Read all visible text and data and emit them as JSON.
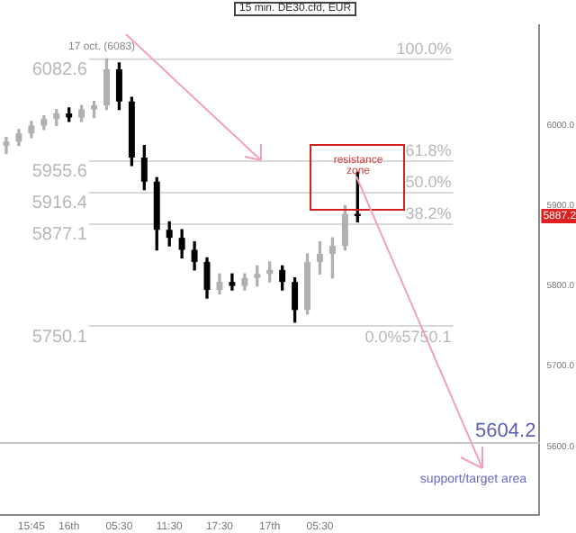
{
  "chart_data": {
    "type": "candlestick",
    "title": "15 min. DE30.cfd, EUR",
    "categories": [
      null,
      null,
      "15:45",
      null,
      null,
      "16th",
      null,
      null,
      null,
      "05:30",
      null,
      null,
      null,
      "11:30",
      null,
      null,
      null,
      "17:30",
      null,
      null,
      null,
      "17th",
      null,
      null,
      null,
      "05:30",
      null,
      null,
      null,
      null,
      null,
      null,
      null,
      null,
      null,
      null,
      null,
      null,
      null,
      null,
      null,
      null,
      null
    ],
    "ohlc": [
      [
        5975,
        5985,
        5965,
        5980
      ],
      [
        5980,
        5995,
        5975,
        5990
      ],
      [
        5990,
        6005,
        5985,
        6000
      ],
      [
        6000,
        6012,
        5995,
        6008
      ],
      [
        6008,
        6020,
        6000,
        6015
      ],
      [
        6015,
        6022,
        6005,
        6010
      ],
      [
        6010,
        6025,
        6005,
        6020
      ],
      [
        6020,
        6030,
        6010,
        6025
      ],
      [
        6025,
        6083,
        6020,
        6070
      ],
      [
        6070,
        6078,
        6020,
        6030
      ],
      [
        6030,
        6035,
        5950,
        5960
      ],
      [
        5960,
        5975,
        5920,
        5930
      ],
      [
        5930,
        5935,
        5845,
        5870
      ],
      [
        5870,
        5880,
        5850,
        5860
      ],
      [
        5860,
        5870,
        5835,
        5845
      ],
      [
        5845,
        5855,
        5820,
        5830
      ],
      [
        5830,
        5835,
        5785,
        5795
      ],
      [
        5795,
        5815,
        5790,
        5805
      ],
      [
        5805,
        5815,
        5795,
        5800
      ],
      [
        5800,
        5815,
        5795,
        5810
      ],
      [
        5810,
        5825,
        5800,
        5815
      ],
      [
        5815,
        5830,
        5805,
        5820
      ],
      [
        5820,
        5825,
        5795,
        5805
      ],
      [
        5805,
        5810,
        5755,
        5770
      ],
      [
        5770,
        5840,
        5765,
        5830
      ],
      [
        5830,
        5855,
        5815,
        5840
      ],
      [
        5840,
        5860,
        5810,
        5850
      ],
      [
        5850,
        5900,
        5845,
        5890
      ],
      [
        5890,
        5942,
        5880,
        5887
      ],
      null,
      null,
      null,
      null,
      null,
      null,
      null,
      null,
      null,
      null,
      null,
      null,
      null,
      null
    ],
    "ylim": [
      5515,
      6125
    ],
    "yticks": [
      {
        "value": 5600,
        "label": "5600.0"
      },
      {
        "value": 5700,
        "label": "5700.0"
      },
      {
        "value": 5800,
        "label": "5800.0"
      },
      {
        "value": 5900,
        "label": "5900.0"
      },
      {
        "value": 6000,
        "label": "6000.0"
      }
    ],
    "grid": false,
    "legend": false,
    "ref_lines": [
      {
        "axis": "y",
        "value": 6082.6,
        "label": "6082.6",
        "color": "#d9d9d9"
      },
      {
        "axis": "y",
        "value": 5955.6,
        "label": "5955.6",
        "color": "#d9d9d9"
      },
      {
        "axis": "y",
        "value": 5916.4,
        "label": "5916.4",
        "color": "#d9d9d9"
      },
      {
        "axis": "y",
        "value": 5877.1,
        "label": "5877.1",
        "color": "#d9d9d9"
      },
      {
        "axis": "y",
        "value": 5750.1,
        "label": "5750.1",
        "color": "#d9d9d9"
      },
      {
        "axis": "y",
        "value": 5604.2,
        "label": "5604.2",
        "color": "#c8c8c8"
      }
    ],
    "annotations": [
      {
        "text": "17 oct. (6083)",
        "y": 6083
      },
      "100.0%",
      "61.8%",
      "50.0%",
      "38.2%",
      "0.0%5750.1",
      "resistance zone",
      "support/target area",
      {
        "text": "5887.2",
        "y": 5887.2
      }
    ]
  }
}
